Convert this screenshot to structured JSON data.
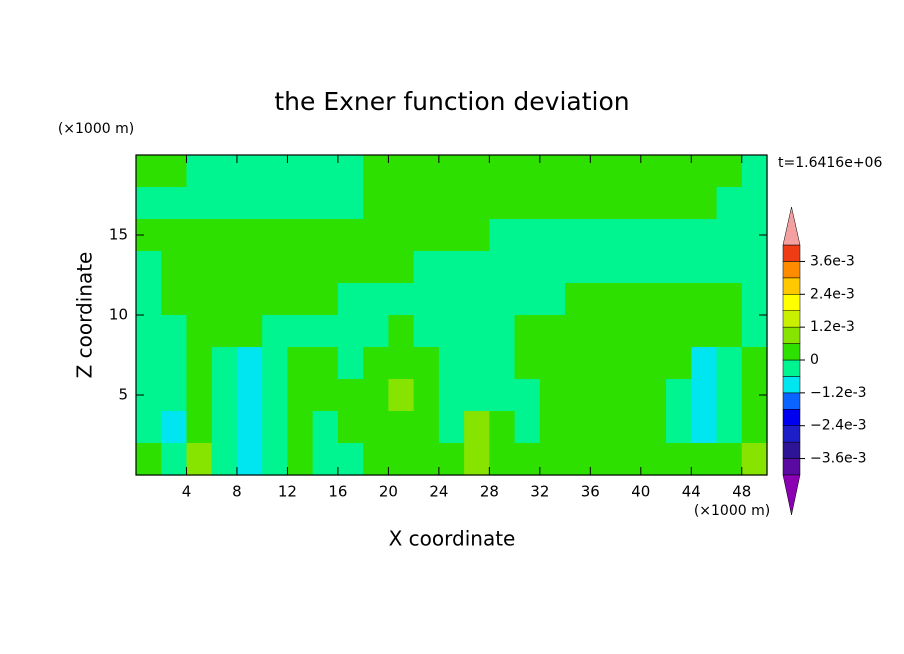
{
  "chart_data": {
    "type": "contour",
    "title": "the Exner function deviation",
    "subtitle": "t=1.6416e+06",
    "x_label": "X coordinate",
    "y_label": "Z coordinate",
    "x_unit": "(×1000 m)",
    "y_unit": "(×1000 m)",
    "xlim": [
      0,
      50
    ],
    "ylim": [
      0,
      20
    ],
    "xticks": [
      4,
      8,
      12,
      16,
      20,
      24,
      28,
      32,
      36,
      40,
      44,
      48
    ],
    "yticks": [
      5,
      10,
      15
    ],
    "levels": [
      -0.0042,
      -0.0036,
      -0.003,
      -0.0024,
      -0.0018,
      -0.0012,
      -0.0006,
      0,
      0.0006,
      0.0012,
      0.0018,
      0.0024,
      0.003,
      0.0036,
      0.0042
    ],
    "colors": [
      "#8c00b4",
      "#5a0aa0",
      "#2d1496",
      "#1e1ec8",
      "#0000f0",
      "#0a64ff",
      "#00e6f0",
      "#00f590",
      "#2ee000",
      "#86e400",
      "#c8f000",
      "#ffff00",
      "#ffc800",
      "#ff8c00",
      "#f03c14",
      "#f4a0a0"
    ],
    "cbticks": [
      {
        "value": 0.0036,
        "label": "3.6e-3"
      },
      {
        "value": 0.0024,
        "label": "2.4e-3"
      },
      {
        "value": 0.0012,
        "label": "1.2e-3"
      },
      0,
      {
        "value": -0.0012,
        "label": "−1.2e-3"
      },
      {
        "value": -0.0024,
        "label": "−2.4e-3"
      },
      {
        "value": -0.0036,
        "label": "−3.6e-3"
      }
    ],
    "x": [
      1,
      3,
      5,
      7,
      9,
      11,
      13,
      15,
      17,
      19,
      21,
      23,
      25,
      27,
      29,
      31,
      33,
      35,
      37,
      39,
      41,
      43,
      45,
      47,
      49
    ],
    "y": [
      19,
      17,
      15,
      13,
      11,
      9,
      7,
      5,
      3,
      1
    ],
    "z": [
      [
        0.0003,
        0.0003,
        -0.0003,
        -0.0003,
        -0.0003,
        -0.0003,
        -0.0003,
        -0.0003,
        -0.0003,
        0.0003,
        0.0003,
        0.0003,
        0.0003,
        0.0003,
        0.0003,
        0.0003,
        0.0003,
        0.0003,
        0.0003,
        0.0003,
        0.0003,
        0.0003,
        0.0003,
        0.0003,
        -0.0003
      ],
      [
        -0.0003,
        -0.0003,
        -0.0003,
        -0.0003,
        -0.0003,
        -0.0003,
        -0.0003,
        -0.0003,
        -0.0003,
        0.0003,
        0.0003,
        0.0003,
        0.0003,
        0.0003,
        0.0003,
        0.0003,
        0.0003,
        0.0003,
        0.0003,
        0.0003,
        0.0003,
        0.0003,
        0.0003,
        -0.0003,
        -0.0003
      ],
      [
        0.0003,
        0.0003,
        0.0003,
        0.0003,
        0.0003,
        0.0003,
        0.0003,
        0.0003,
        0.0003,
        0.0003,
        0.0003,
        0.0003,
        0.0003,
        0.0003,
        -0.0003,
        -0.0003,
        -0.0003,
        -0.0003,
        -0.0003,
        -0.0003,
        -0.0003,
        -0.0003,
        -0.0003,
        -0.0003,
        -0.0003
      ],
      [
        -0.0003,
        0.0003,
        0.0003,
        0.0003,
        0.0003,
        0.0003,
        0.0003,
        0.0003,
        0.0003,
        0.0003,
        0.0003,
        -0.0003,
        -0.0003,
        -0.0003,
        -0.0003,
        -0.0003,
        -0.0003,
        -0.0003,
        -0.0003,
        -0.0003,
        -0.0003,
        -0.0003,
        -0.0003,
        -0.0003,
        -0.0003
      ],
      [
        -0.0003,
        0.0003,
        0.0003,
        0.0003,
        0.0003,
        0.0003,
        0.0003,
        0.0003,
        -0.0003,
        -0.0003,
        -0.0003,
        -0.0003,
        -0.0003,
        -0.0003,
        -0.0003,
        -0.0003,
        -0.0003,
        0.0003,
        0.0003,
        0.0003,
        0.0003,
        0.0003,
        0.0003,
        0.0003,
        -0.0003
      ],
      [
        -0.0003,
        -0.0003,
        0.0003,
        0.0003,
        0.0003,
        -0.0003,
        -0.0003,
        -0.0003,
        -0.0003,
        -0.0003,
        0.0003,
        -0.0003,
        -0.0003,
        -0.0003,
        -0.0003,
        0.0003,
        0.0003,
        0.0003,
        0.0003,
        0.0003,
        0.0003,
        0.0003,
        0.0003,
        0.0003,
        -0.0003
      ],
      [
        -0.0003,
        -0.0003,
        0.0003,
        -0.0003,
        -0.0009,
        -0.0003,
        0.0003,
        0.0003,
        -0.0003,
        0.0003,
        0.0003,
        0.0003,
        -0.0003,
        -0.0003,
        -0.0003,
        0.0003,
        0.0003,
        0.0003,
        0.0003,
        0.0003,
        0.0003,
        0.0003,
        -0.0009,
        -0.0003,
        0.0003
      ],
      [
        -0.0003,
        -0.0003,
        0.0003,
        -0.0003,
        -0.0009,
        -0.0003,
        0.0003,
        0.0003,
        0.0003,
        0.0003,
        0.0009,
        0.0003,
        -0.0003,
        -0.0003,
        -0.0003,
        -0.0003,
        0.0003,
        0.0003,
        0.0003,
        0.0003,
        0.0003,
        -0.0003,
        -0.0009,
        -0.0003,
        0.0003
      ],
      [
        -0.0003,
        -0.0009,
        0.0003,
        -0.0003,
        -0.0009,
        -0.0003,
        0.0003,
        -0.0003,
        0.0003,
        0.0003,
        0.0003,
        0.0003,
        -0.0003,
        0.0009,
        0.0003,
        -0.0003,
        0.0003,
        0.0003,
        0.0003,
        0.0003,
        0.0003,
        -0.0003,
        -0.0009,
        -0.0003,
        0.0003
      ],
      [
        0.0003,
        -0.0003,
        0.0009,
        -0.0003,
        -0.0009,
        -0.0003,
        0.0003,
        -0.0003,
        -0.0003,
        0.0003,
        0.0003,
        0.0003,
        0.0003,
        0.0009,
        0.0003,
        0.0003,
        0.0003,
        0.0003,
        0.0003,
        0.0003,
        0.0003,
        0.0003,
        0.0003,
        0.0003,
        0.0009
      ]
    ]
  }
}
